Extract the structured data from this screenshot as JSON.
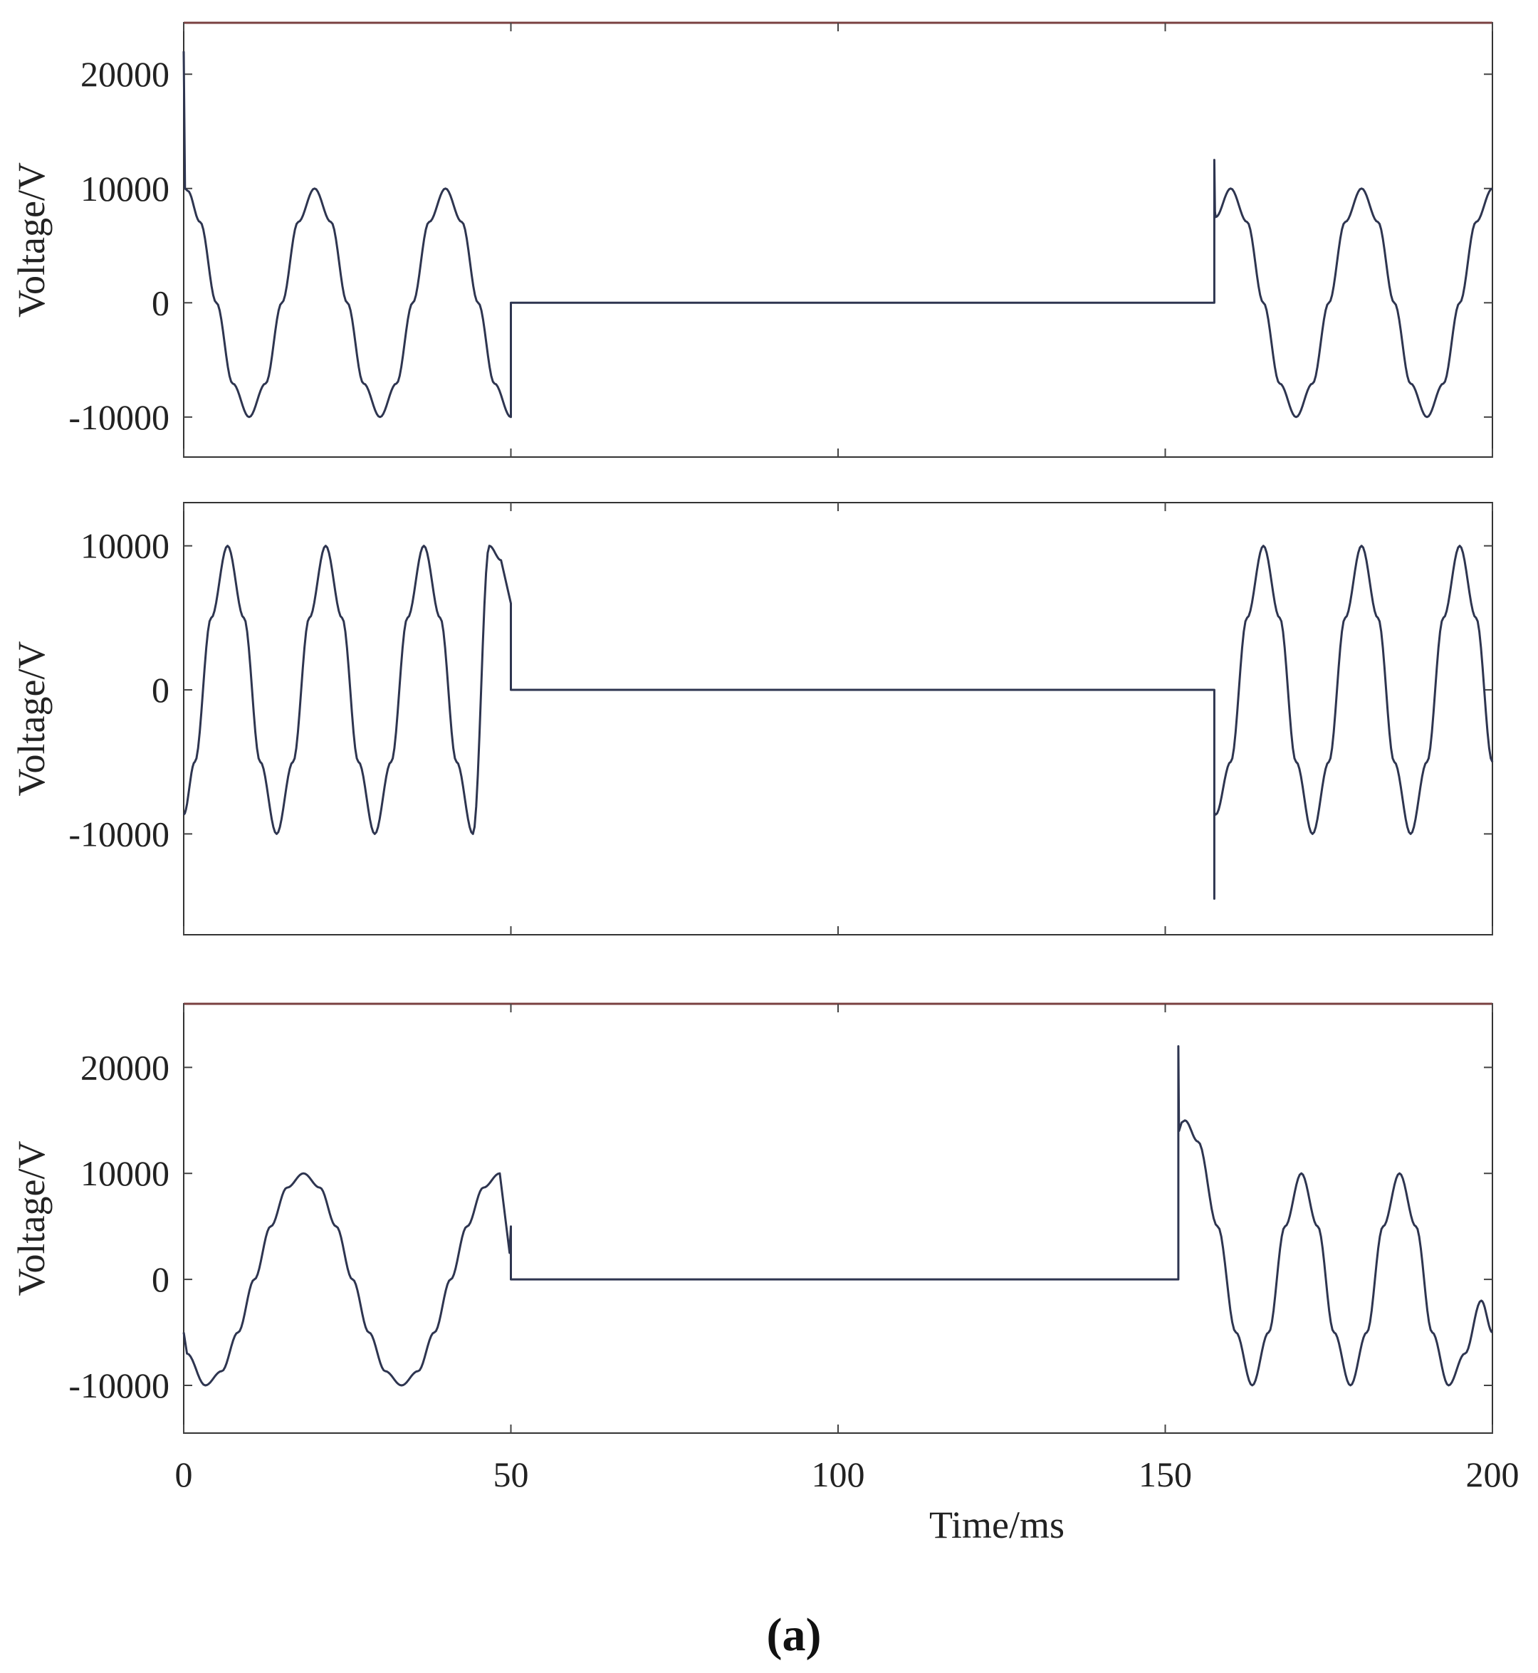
{
  "figure": {
    "caption": "(a)",
    "xlabel": "Time/ms",
    "xticks": [
      "0",
      "50",
      "100",
      "150",
      "200"
    ]
  },
  "colors": {
    "trace": "#2e3550",
    "top_border": "#7a4040"
  },
  "chart_data": [
    {
      "type": "line",
      "panel": "top",
      "ylabel": "Voltage/V",
      "xlim": [
        0,
        200
      ],
      "ylim": [
        -13500,
        24500
      ],
      "yticks": [
        20000,
        10000,
        0,
        -10000
      ],
      "ytick_labels": [
        "20000",
        "10000",
        "0",
        "-10000"
      ],
      "series": [
        {
          "x": [
            0,
            0.2,
            0.6,
            2.5,
            5,
            7.5,
            10,
            12.5,
            15,
            17.5,
            20,
            22.5,
            25,
            27.5,
            30,
            32.5,
            35,
            37.5,
            40,
            42.5,
            45,
            47.5,
            50,
            50,
            50.3,
            157.5,
            157.5,
            157.6,
            157.7,
            160,
            162.5,
            165,
            167.5,
            170,
            172.5,
            175,
            177.5,
            180,
            182.5,
            185,
            187.5,
            190,
            192.5,
            195,
            197.5,
            200
          ],
          "y": [
            22000,
            10000,
            9800,
            7071,
            0,
            -7071,
            -10000,
            -7071,
            0,
            7071,
            10000,
            7071,
            0,
            -7071,
            -10000,
            -7071,
            0,
            7071,
            10000,
            7071,
            0,
            -7071,
            -10000,
            0,
            0,
            0,
            12500,
            8000,
            7500,
            10000,
            7071,
            0,
            -7071,
            -10000,
            -7071,
            0,
            7071,
            10000,
            7071,
            0,
            -7071,
            -10000,
            -7071,
            0,
            7071,
            10000
          ]
        }
      ]
    },
    {
      "type": "line",
      "panel": "middle",
      "ylabel": "Voltage/V",
      "xlim": [
        0,
        200
      ],
      "ylim": [
        -17000,
        13000
      ],
      "yticks": [
        10000,
        0,
        -10000
      ],
      "ytick_labels": [
        "10000",
        "0",
        "-10000"
      ],
      "series": [
        {
          "x": [
            0,
            1.7,
            4.2,
            6.7,
            9.2,
            11.7,
            14.2,
            16.7,
            19.2,
            21.7,
            24.2,
            26.7,
            29.2,
            31.7,
            34.2,
            36.7,
            39.2,
            41.7,
            44.2,
            46.7,
            48.5,
            50,
            50,
            50.3,
            157.5,
            157.5,
            157.5,
            157.6,
            157.7,
            160,
            162.5,
            165,
            167.5,
            170,
            172.5,
            175,
            177.5,
            180,
            182.5,
            185,
            187.5,
            190,
            192.5,
            195,
            197.5,
            200
          ],
          "y": [
            -8660,
            -5000,
            5000,
            10000,
            5000,
            -5000,
            -10000,
            -5000,
            5000,
            10000,
            5000,
            -5000,
            -10000,
            -5000,
            5000,
            10000,
            5000,
            -5000,
            -10000,
            10000,
            9000,
            6000,
            0,
            0,
            0,
            -14500,
            -8500,
            -8660,
            -8660,
            -5000,
            5000,
            10000,
            5000,
            -5000,
            -10000,
            -5000,
            5000,
            10000,
            5000,
            -5000,
            -10000,
            -5000,
            5000,
            10000,
            5000,
            -5000
          ]
        }
      ]
    },
    {
      "type": "line",
      "panel": "bottom",
      "ylabel": "Voltage/V",
      "xlim": [
        0,
        200
      ],
      "ylim": [
        -14500,
        26000
      ],
      "yticks": [
        20000,
        10000,
        0,
        -10000
      ],
      "ytick_labels": [
        "20000",
        "10000",
        "0",
        "-10000"
      ],
      "series": [
        {
          "x": [
            0,
            0.5,
            3.3,
            5.8,
            8.3,
            10.8,
            13.3,
            15.8,
            18.3,
            20.8,
            23.3,
            25.8,
            28.3,
            30.8,
            33.3,
            35.8,
            38.3,
            40.8,
            43.3,
            45.8,
            48.3,
            49.8,
            50,
            50,
            50.3,
            152,
            152,
            152.1,
            152.2,
            152.5,
            153,
            155,
            158,
            160.8,
            163.3,
            165.8,
            168.3,
            170.8,
            173.3,
            175.8,
            178.3,
            180.8,
            183.3,
            185.8,
            188.3,
            190.8,
            193.3,
            195.8,
            198.3,
            200
          ],
          "y": [
            -5000,
            -7000,
            -10000,
            -8660,
            -5000,
            0,
            5000,
            8660,
            10000,
            8660,
            5000,
            0,
            -5000,
            -8660,
            -10000,
            -8660,
            -5000,
            0,
            5000,
            8660,
            10000,
            2500,
            5000,
            0,
            0,
            0,
            22000,
            14000,
            14200,
            14800,
            15000,
            13000,
            5000,
            -5000,
            -10000,
            -5000,
            5000,
            10000,
            5000,
            -5000,
            -10000,
            -5000,
            5000,
            10000,
            5000,
            -5000,
            -10000,
            -7000,
            -2000,
            -5000
          ]
        }
      ]
    }
  ]
}
